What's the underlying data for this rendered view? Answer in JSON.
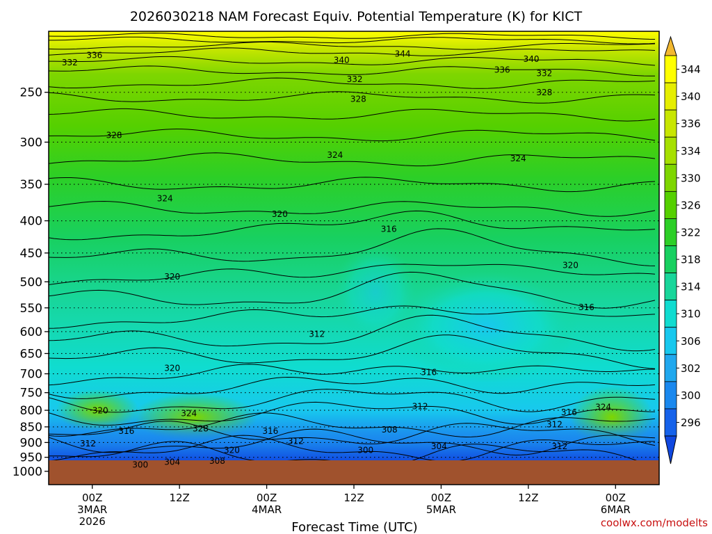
{
  "chart_data": {
    "type": "heatmap",
    "title": "2026030218 NAM Forecast Equiv. Potential Temperature (K) for KICT",
    "xlabel": "Forecast Time (UTC)",
    "ylabel": "",
    "credit": "coolwx.com/modelts",
    "x_ticks": [
      {
        "hour": 6,
        "lines": [
          "00Z",
          "3MAR",
          "2026"
        ]
      },
      {
        "hour": 18,
        "lines": [
          "12Z"
        ]
      },
      {
        "hour": 30,
        "lines": [
          "00Z",
          "4MAR"
        ]
      },
      {
        "hour": 42,
        "lines": [
          "12Z"
        ]
      },
      {
        "hour": 54,
        "lines": [
          "00Z",
          "5MAR"
        ]
      },
      {
        "hour": 66,
        "lines": [
          "12Z"
        ]
      },
      {
        "hour": 78,
        "lines": [
          "00Z",
          "6MAR"
        ]
      }
    ],
    "x_range_hours": [
      0,
      84
    ],
    "y_axis": {
      "unit": "hPa",
      "scale": "log",
      "range": [
        1050,
        200
      ],
      "ticks": [
        250,
        300,
        350,
        400,
        450,
        500,
        550,
        600,
        650,
        700,
        750,
        800,
        850,
        900,
        950,
        1000
      ],
      "tick_labels": [
        "250",
        "300",
        "350",
        "400",
        "450",
        "500",
        "550",
        "600",
        "650",
        "700",
        "750",
        "800",
        "850",
        "900",
        "950",
        "1000"
      ]
    },
    "colorbar": {
      "labels": [
        "344",
        "340",
        "336",
        "334",
        "330",
        "326",
        "322",
        "318",
        "314",
        "310",
        "306",
        "302",
        "300",
        "296"
      ],
      "colors": [
        "#ffff00",
        "#e6ee00",
        "#c8e600",
        "#a6e000",
        "#7ed600",
        "#55d000",
        "#2ccf27",
        "#18d060",
        "#18d69a",
        "#10dcd0",
        "#18c8ee",
        "#20a8ee",
        "#1a88ee",
        "#1662ea"
      ],
      "low_tip": "#1048e0",
      "high_tip": "#f2b830"
    },
    "contour_labels": [
      {
        "text": "336",
        "x": 6.3,
        "p": 218
      },
      {
        "text": "332",
        "x": 2.9,
        "p": 224
      },
      {
        "text": "344",
        "x": 48.7,
        "p": 217
      },
      {
        "text": "340",
        "x": 40.3,
        "p": 222
      },
      {
        "text": "340",
        "x": 66.4,
        "p": 221
      },
      {
        "text": "336",
        "x": 62.4,
        "p": 230
      },
      {
        "text": "332",
        "x": 42.1,
        "p": 238
      },
      {
        "text": "332",
        "x": 68.2,
        "p": 233
      },
      {
        "text": "328",
        "x": 42.6,
        "p": 256
      },
      {
        "text": "328",
        "x": 68.2,
        "p": 250
      },
      {
        "text": "328",
        "x": 9.0,
        "p": 292
      },
      {
        "text": "324",
        "x": 39.4,
        "p": 314
      },
      {
        "text": "324",
        "x": 64.6,
        "p": 318
      },
      {
        "text": "324",
        "x": 16.0,
        "p": 368
      },
      {
        "text": "320",
        "x": 31.8,
        "p": 390
      },
      {
        "text": "316",
        "x": 46.8,
        "p": 412
      },
      {
        "text": "320",
        "x": 71.8,
        "p": 470
      },
      {
        "text": "320",
        "x": 17.0,
        "p": 490
      },
      {
        "text": "316",
        "x": 74.0,
        "p": 548
      },
      {
        "text": "312",
        "x": 36.9,
        "p": 605
      },
      {
        "text": "320",
        "x": 17.0,
        "p": 685
      },
      {
        "text": "316",
        "x": 52.3,
        "p": 695
      },
      {
        "text": "312",
        "x": 51.1,
        "p": 788
      },
      {
        "text": "320",
        "x": 7.1,
        "p": 800
      },
      {
        "text": "324",
        "x": 19.3,
        "p": 808
      },
      {
        "text": "324",
        "x": 76.3,
        "p": 790
      },
      {
        "text": "316",
        "x": 71.6,
        "p": 805
      },
      {
        "text": "312",
        "x": 69.6,
        "p": 842
      },
      {
        "text": "328",
        "x": 20.9,
        "p": 855
      },
      {
        "text": "316",
        "x": 10.7,
        "p": 862
      },
      {
        "text": "316",
        "x": 30.5,
        "p": 862
      },
      {
        "text": "308",
        "x": 46.9,
        "p": 858
      },
      {
        "text": "312",
        "x": 5.4,
        "p": 902
      },
      {
        "text": "312",
        "x": 34.0,
        "p": 895
      },
      {
        "text": "304",
        "x": 53.7,
        "p": 912
      },
      {
        "text": "312",
        "x": 70.3,
        "p": 912
      },
      {
        "text": "300",
        "x": 43.6,
        "p": 925
      },
      {
        "text": "320",
        "x": 25.2,
        "p": 925
      },
      {
        "text": "308",
        "x": 23.2,
        "p": 962
      },
      {
        "text": "304",
        "x": 17.0,
        "p": 965
      },
      {
        "text": "300",
        "x": 12.6,
        "p": 975
      }
    ]
  }
}
